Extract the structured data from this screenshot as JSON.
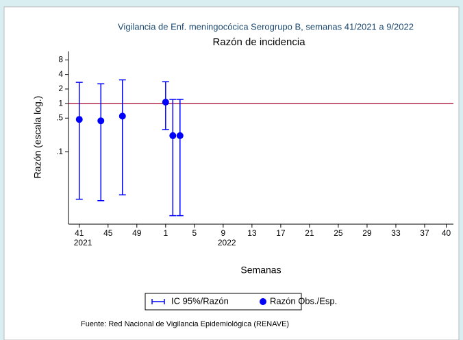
{
  "chart_data": {
    "type": "errorbar-scatter",
    "title": "Vigilancia de Enf. meningocócica Serogrupo B, semanas 41/2021 a 9/2022",
    "subtitle": "Razón de incidencia",
    "x_label": "Semanas",
    "y_label": "Razón (escala log.)",
    "source": "Fuente: Red Nacional de Vigilancia Epidemiológica (RENAVE)",
    "log_scale_y": true,
    "x": [
      0,
      3,
      6,
      12,
      13,
      14
    ],
    "series": [
      {
        "name": "Razón Obs./Esp.",
        "color": "#0000ff",
        "values": [
          0.47,
          0.44,
          0.55,
          1.07,
          0.217,
          0.217
        ]
      }
    ],
    "error_bars": {
      "name": "IC 95%/Razón",
      "color": "#0000ff",
      "lower": [
        0.0105,
        0.0098,
        0.0129,
        0.29,
        0.0048,
        0.0048
      ],
      "upper": [
        2.75,
        2.57,
        3.1,
        2.83,
        1.22,
        1.22
      ]
    },
    "reference_line": {
      "value": 1,
      "color": "#b0264a"
    },
    "xlim": [
      -1.5,
      52
    ],
    "xticks": [
      {
        "value": 0,
        "label": "41"
      },
      {
        "value": 4,
        "label": "45"
      },
      {
        "value": 8,
        "label": "49"
      },
      {
        "value": 12,
        "label": "1"
      },
      {
        "value": 16,
        "label": "5"
      },
      {
        "value": 20,
        "label": "9"
      },
      {
        "value": 24,
        "label": "13"
      },
      {
        "value": 28,
        "label": "17"
      },
      {
        "value": 32,
        "label": "21"
      },
      {
        "value": 36,
        "label": "25"
      },
      {
        "value": 40,
        "label": "29"
      },
      {
        "value": 44,
        "label": "33"
      },
      {
        "value": 48,
        "label": "37"
      },
      {
        "value": 51,
        "label": "40"
      }
    ],
    "year_labels": [
      {
        "value": 0,
        "label": "2021"
      },
      {
        "value": 20,
        "label": "2022"
      }
    ],
    "ylim": [
      0.0032,
      12
    ],
    "yticks": [
      8,
      4,
      2,
      1,
      {
        "value": 0.5,
        "label": ".5"
      },
      {
        "value": 0.1,
        "label": ".1"
      }
    ]
  }
}
